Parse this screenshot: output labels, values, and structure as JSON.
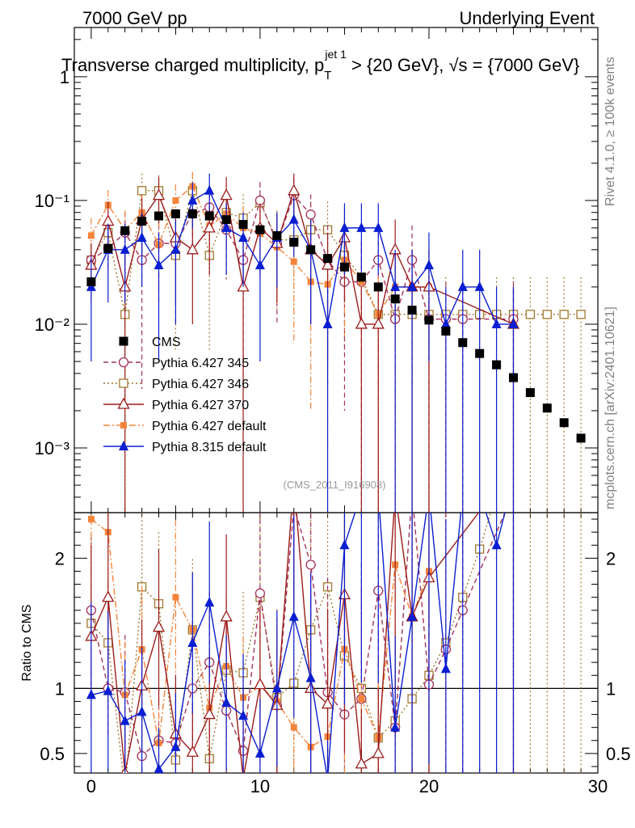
{
  "header": {
    "left": "7000 GeV pp",
    "right": "Underlying Event"
  },
  "title": {
    "main": "Transverse charged multiplicity, p",
    "sub": "T",
    "sup": "jet 1",
    "rest": " > {20 GeV}, √s = {7000 GeV}"
  },
  "side_labels": {
    "rivet": "Rivet 4.1.0, ≥ 100k events",
    "mcplots": "mcplots.cern.ch [arXiv:2401.10621]"
  },
  "watermark": "(CMS_2011_I916908)",
  "ratio_ylabel": "Ratio to CMS",
  "colors": {
    "cms": "#000000",
    "p345": "#a3325a",
    "p346": "#a0782e",
    "p370": "#9b1b1b",
    "pdef": "#f5843a",
    "p8": "#0a1ed2"
  },
  "chart_data": {
    "type": "scatter",
    "x_axis": {
      "range": [
        -1,
        30
      ],
      "ticks": [
        0,
        10,
        20,
        30
      ],
      "tick_labels": [
        "0",
        "10",
        "20",
        "30"
      ]
    },
    "main_y_axis": {
      "scale": "log",
      "range": [
        0.0003,
        2.5
      ],
      "tick_labels": [
        {
          "v": 1,
          "t": "1"
        },
        {
          "v": 0.1,
          "t": "10⁻¹"
        },
        {
          "v": 0.01,
          "t": "10⁻²"
        },
        {
          "v": 0.001,
          "t": "10⁻³"
        }
      ]
    },
    "ratio_y_axis": {
      "scale": "linear",
      "range": [
        0.35,
        2.35
      ],
      "ticks": [
        0.5,
        1,
        2
      ],
      "tick_labels": [
        "0.5",
        "1",
        "2"
      ]
    },
    "legend": [
      "CMS",
      "Pythia 6.427 345",
      "Pythia 6.427 346",
      "Pythia 6.427 370",
      "Pythia 6.427 default",
      "Pythia 8.315 default"
    ],
    "series": [
      {
        "name": "CMS",
        "key": "cms",
        "marker": "square-filled",
        "line": "none",
        "x": [
          0,
          1,
          2,
          3,
          4,
          5,
          6,
          7,
          8,
          9,
          10,
          11,
          12,
          13,
          14,
          15,
          16,
          17,
          18,
          19,
          20,
          21,
          22,
          23,
          24,
          25,
          26,
          27,
          28,
          29
        ],
        "y": [
          0.022,
          0.041,
          0.057,
          0.068,
          0.075,
          0.078,
          0.078,
          0.075,
          0.07,
          0.064,
          0.058,
          0.052,
          0.046,
          0.04,
          0.034,
          0.029,
          0.024,
          0.02,
          0.016,
          0.013,
          0.0108,
          0.0088,
          0.0071,
          0.0058,
          0.0047,
          0.0037,
          0.0028,
          0.0021,
          0.0016,
          0.0012
        ]
      },
      {
        "name": "Pythia 6.427 345",
        "key": "p345",
        "marker": "circle-open",
        "line": "dashed",
        "x": [
          0,
          1,
          2,
          3,
          4,
          5,
          6,
          7,
          8,
          9,
          10,
          11,
          12,
          13,
          14,
          15,
          16,
          17,
          18,
          19,
          20,
          21,
          22,
          25
        ],
        "y": [
          0.033,
          0.041,
          0.055,
          0.033,
          0.045,
          0.045,
          0.078,
          0.088,
          0.058,
          0.033,
          0.1,
          0.045,
          0.11,
          0.077,
          0.033,
          0.022,
          0.022,
          0.033,
          0.011,
          0.033,
          0.011,
          0.011,
          0.011,
          0.011
        ],
        "err": [
          0.012,
          0.015,
          0.025,
          0.03,
          0.03,
          0.035,
          0.04,
          0.04,
          0.035,
          0.03,
          0.04,
          0.035,
          0.04,
          0.035,
          0.03,
          0.02,
          0.025,
          0.03,
          0.011,
          0.03,
          0.011,
          0.011,
          0.011,
          0.011
        ],
        "ratio": [
          1.6,
          1.0,
          0.97,
          0.48,
          0.6,
          0.58,
          1.0,
          1.2,
          0.83,
          0.52,
          1.73,
          0.87,
          2.4,
          1.95,
          0.97,
          0.8,
          0.92,
          1.75,
          0.7,
          2.5,
          1.03,
          1.3,
          1.6,
          2.5
        ]
      },
      {
        "name": "Pythia 6.427 346",
        "key": "p346",
        "marker": "square-open",
        "line": "dotted",
        "x": [
          0,
          1,
          2,
          3,
          4,
          5,
          6,
          7,
          8,
          9,
          10,
          11,
          12,
          13,
          14,
          15,
          16,
          17,
          18,
          19,
          20,
          21,
          22,
          23,
          24,
          25,
          26,
          27,
          28,
          29
        ],
        "y": [
          0.033,
          0.055,
          0.012,
          0.12,
          0.12,
          0.036,
          0.12,
          0.036,
          0.08,
          0.072,
          0.096,
          0.048,
          0.048,
          0.058,
          0.058,
          0.036,
          0.024,
          0.012,
          0.012,
          0.012,
          0.012,
          0.012,
          0.012,
          0.012,
          0.012,
          0.012,
          0.012,
          0.012,
          0.012,
          0.012
        ],
        "err": [
          0.015,
          0.02,
          0.012,
          0.045,
          0.04,
          0.03,
          0.045,
          0.03,
          0.04,
          0.04,
          0.045,
          0.035,
          0.035,
          0.04,
          0.04,
          0.03,
          0.02,
          0.012,
          0.012,
          0.012,
          0.012,
          0.012,
          0.012,
          0.012,
          0.012,
          0.012,
          0.012,
          0.012,
          0.012,
          0.012
        ],
        "ratio": [
          1.5,
          1.35,
          0.21,
          1.78,
          1.65,
          0.45,
          1.45,
          0.46,
          1.14,
          1.12,
          1.7,
          0.93,
          1.04,
          1.45,
          1.78,
          1.25,
          1.0,
          0.62,
          0.75,
          0.92,
          1.1,
          1.35,
          1.7,
          2.07,
          2.5,
          3.2,
          4.3,
          5.7,
          7.5,
          10
        ]
      },
      {
        "name": "Pythia 6.427 370",
        "key": "p370",
        "marker": "triangle-open",
        "line": "solid",
        "x": [
          0,
          1,
          2,
          3,
          4,
          5,
          6,
          7,
          8,
          9,
          10,
          11,
          12,
          13,
          14,
          15,
          16,
          17,
          18,
          19,
          20,
          25
        ],
        "y": [
          0.03,
          0.068,
          0.02,
          0.07,
          0.11,
          0.05,
          0.04,
          0.06,
          0.11,
          0.02,
          0.06,
          0.045,
          0.12,
          0.04,
          0.03,
          0.05,
          0.01,
          0.01,
          0.04,
          0.02,
          0.02,
          0.01
        ],
        "err": [
          0.015,
          0.03,
          0.02,
          0.035,
          0.045,
          0.035,
          0.03,
          0.035,
          0.045,
          0.02,
          0.035,
          0.03,
          0.045,
          0.03,
          0.025,
          0.035,
          0.01,
          0.01,
          0.03,
          0.02,
          0.02,
          0.01
        ],
        "ratio": [
          1.4,
          1.7,
          0.35,
          1.02,
          1.47,
          0.65,
          0.51,
          0.8,
          1.55,
          0.31,
          1.03,
          0.87,
          2.6,
          1.0,
          0.88,
          1.72,
          0.42,
          0.5,
          2.5,
          1.55,
          1.85,
          2.7
        ]
      },
      {
        "name": "Pythia 6.427 default",
        "key": "pdef",
        "marker": "square-filled-small",
        "line": "dashdot",
        "x": [
          0,
          1,
          2,
          3,
          4,
          5,
          6,
          7,
          8,
          9,
          10,
          11,
          12,
          13,
          14,
          15,
          16,
          17,
          18,
          19,
          20
        ],
        "y": [
          0.052,
          0.092,
          0.058,
          0.08,
          0.044,
          0.1,
          0.13,
          0.062,
          0.078,
          0.06,
          0.054,
          0.042,
          0.032,
          0.022,
          0.021,
          0.033,
          0.022,
          0.012,
          0.02,
          0.02,
          0.02
        ],
        "err": [
          0.02,
          0.03,
          0.025,
          0.03,
          0.025,
          0.035,
          0.04,
          0.03,
          0.035,
          0.03,
          0.03,
          0.028,
          0.025,
          0.02,
          0.02,
          0.025,
          0.02,
          0.012,
          0.02,
          0.02,
          0.02
        ],
        "ratio": [
          2.3,
          2.2,
          0.95,
          1.3,
          0.58,
          1.7,
          1.45,
          0.85,
          1.17,
          0.93,
          1.02,
          0.9,
          0.7,
          0.55,
          0.63,
          1.3,
          0.92,
          0.62,
          1.95,
          1.55,
          1.9
        ]
      },
      {
        "name": "Pythia 8.315 default",
        "key": "p8",
        "marker": "triangle-filled",
        "line": "solid",
        "x": [
          0,
          1,
          2,
          3,
          4,
          5,
          6,
          7,
          8,
          9,
          10,
          11,
          12,
          13,
          14,
          15,
          16,
          17,
          18,
          19,
          20,
          21,
          22,
          23,
          24,
          25
        ],
        "y": [
          0.02,
          0.04,
          0.04,
          0.05,
          0.03,
          0.04,
          0.1,
          0.12,
          0.06,
          0.05,
          0.03,
          0.05,
          0.07,
          0.04,
          0.01,
          0.06,
          0.06,
          0.06,
          0.02,
          0.02,
          0.03,
          0.01,
          0.02,
          0.02,
          0.01,
          0.01
        ],
        "err": [
          0.015,
          0.025,
          0.025,
          0.03,
          0.025,
          0.03,
          0.04,
          0.045,
          0.035,
          0.03,
          0.025,
          0.03,
          0.035,
          0.03,
          0.01,
          0.035,
          0.035,
          0.035,
          0.02,
          0.02,
          0.025,
          0.01,
          0.02,
          0.02,
          0.01,
          0.01
        ],
        "ratio": [
          0.95,
          0.98,
          0.75,
          0.82,
          0.38,
          0.55,
          1.35,
          1.66,
          0.89,
          0.79,
          0.5,
          1.0,
          1.55,
          1.08,
          0.3,
          2.1,
          2.5,
          2.5,
          0.7,
          1.55,
          2.5,
          1.15,
          2.5,
          2.5,
          2.1,
          2.6
        ]
      }
    ]
  }
}
